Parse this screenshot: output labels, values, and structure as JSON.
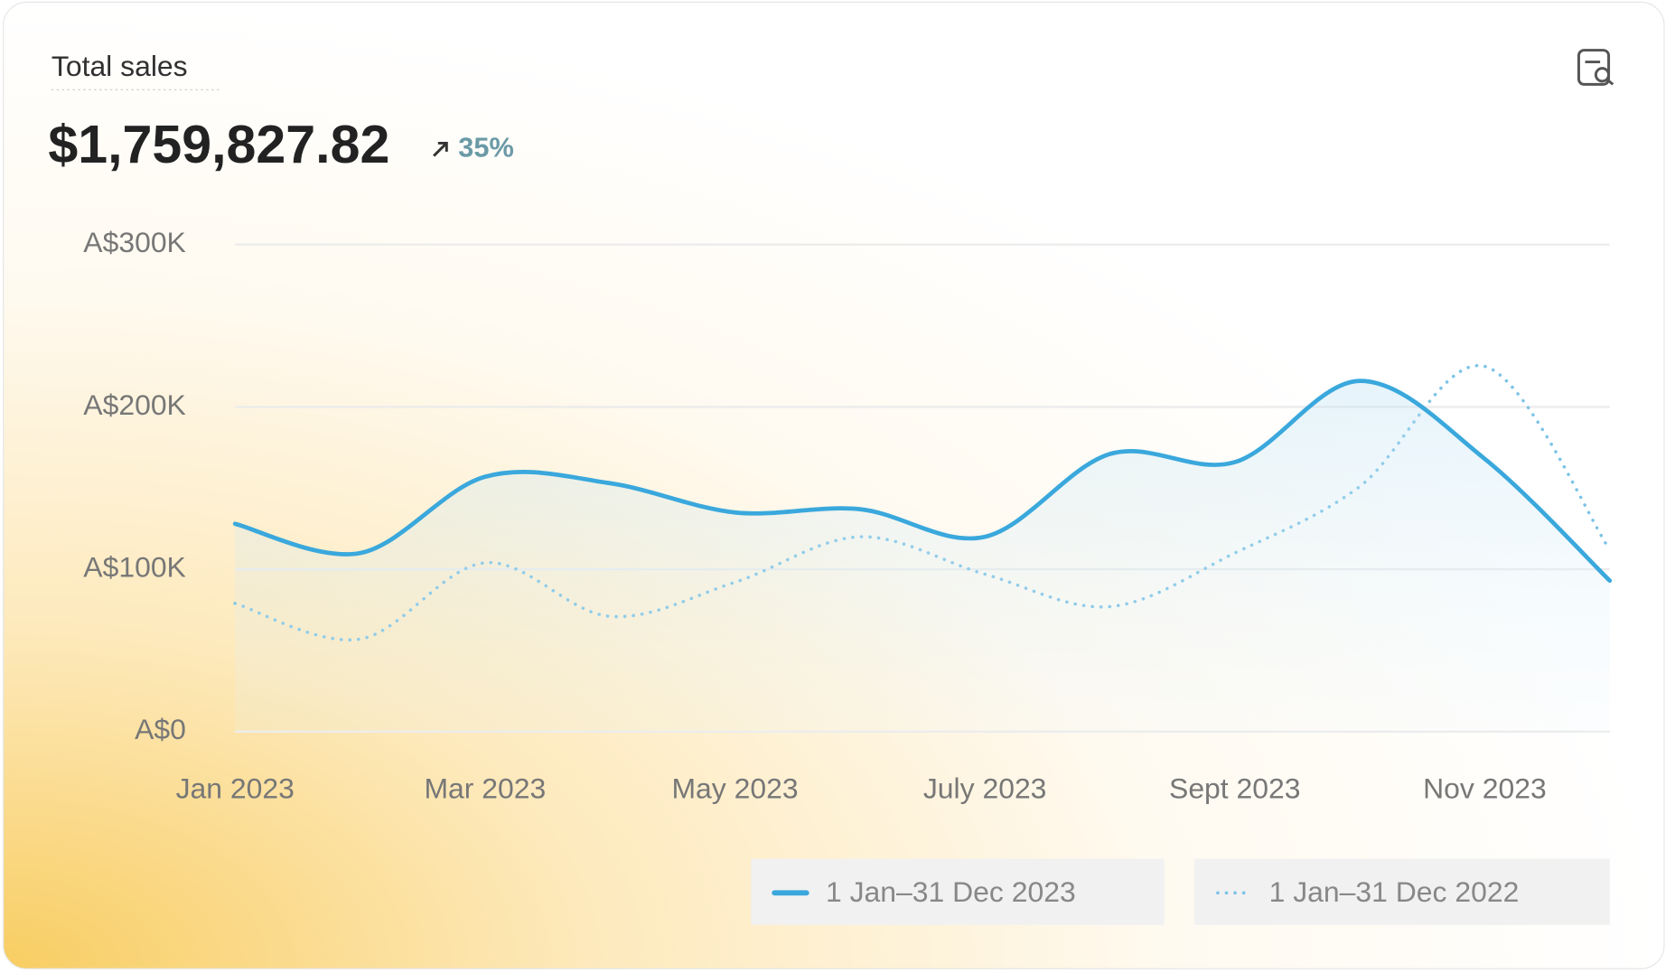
{
  "chart_data": {
    "type": "line",
    "title": "Total sales",
    "total": "$1,759,827.82",
    "change": "35%",
    "categories": [
      "Jan 2023",
      null,
      "Mar 2023",
      null,
      "May 2023",
      null,
      "July 2023",
      null,
      "Sept 2023",
      null,
      "Nov 2023",
      null
    ],
    "series": [
      {
        "name": "1 Jan–31 Dec 2023",
        "color": "#3aa8dc",
        "style": "solid",
        "values": [
          128000,
          110000,
          157000,
          153000,
          135000,
          137000,
          120000,
          171000,
          166000,
          216000,
          168000,
          93000
        ]
      },
      {
        "name": "1 Jan–31 Dec 2022",
        "color": "#7cc3e6",
        "style": "dotted",
        "values": [
          79000,
          57000,
          104000,
          71000,
          92000,
          120000,
          97000,
          77000,
          110000,
          151000,
          225000,
          112000
        ]
      }
    ],
    "ylim": [
      0,
      300000
    ],
    "yticks": [
      {
        "value": 0,
        "label": "A$0"
      },
      {
        "value": 100000,
        "label": "A$100K"
      },
      {
        "value": 200000,
        "label": "A$200K"
      },
      {
        "value": 300000,
        "label": "A$300K"
      }
    ],
    "grid": true
  }
}
